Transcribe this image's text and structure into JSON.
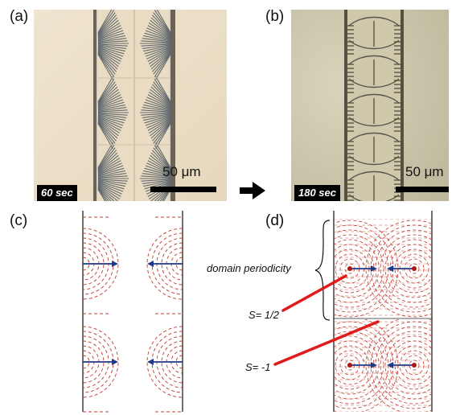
{
  "figure": {
    "panels": {
      "a": {
        "label": "(a)",
        "time": "60 sec",
        "scale": "50 μm"
      },
      "b": {
        "label": "(b)",
        "time": "180 sec",
        "scale": "50 μm"
      },
      "c": {
        "label": "(c)"
      },
      "d": {
        "label": "(d)"
      }
    },
    "annotations": {
      "domain_periodicity": "domain periodicity",
      "s_half": "S= 1/2",
      "s_minus_one": "S= -1"
    },
    "colors": {
      "director_lines": "#c0392b",
      "defect_arrow": "#1f3a8a",
      "pointer": "#e01b1b",
      "defect_dot": "#b01515"
    },
    "icons": [
      "arrow-right-icon",
      "curly-brace-icon"
    ]
  }
}
